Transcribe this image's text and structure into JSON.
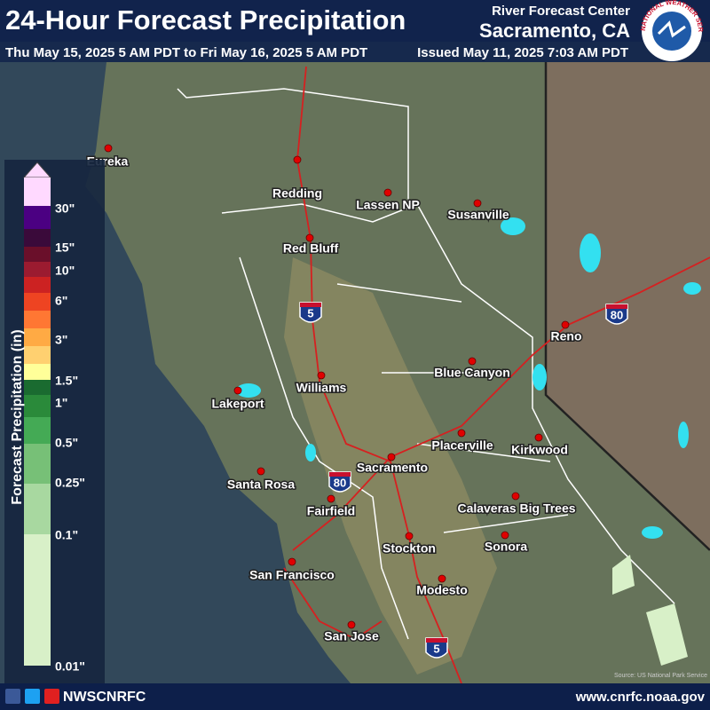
{
  "header": {
    "title": "24-Hour Forecast Precipitation",
    "valid_period": "Thu May 15, 2025 5 AM PDT to Fri May 16, 2025 5 AM PDT",
    "office_line1": "River Forecast Center",
    "office_line2": "Sacramento, CA",
    "issued": "Issued May 11, 2025 7:03 AM PDT"
  },
  "logo_text": "NATIONAL WEATHER SERVICE",
  "legend": {
    "title": "Forecast Precipitation (in)",
    "labels": [
      "30\"",
      "15\"",
      "10\"",
      "6\"",
      "3\"",
      "1.5\"",
      "1\"",
      "0.5\"",
      "0.25\"",
      "0.1\"",
      "0.01\""
    ],
    "colors": [
      "#ffd9ff",
      "#4b0082",
      "#3a0a3a",
      "#6a0f2a",
      "#9b1b30",
      "#cc2222",
      "#ee4422",
      "#ff7733",
      "#ffaa44",
      "#ffd070",
      "#ffff99",
      "#1a6b30",
      "#2a8a3a",
      "#44aa55",
      "#77c077",
      "#a8d8a0",
      "#d8f0c8"
    ]
  },
  "cities": [
    "Eureka",
    "Redding",
    "Lassen NP",
    "Susanville",
    "Red Bluff",
    "Reno",
    "Blue Canyon",
    "Williams",
    "Lakeport",
    "Placerville",
    "Kirkwood",
    "Sacramento",
    "Santa Rosa",
    "Fairfield",
    "Calaveras Big Trees",
    "Sonora",
    "Stockton",
    "San Francisco",
    "Modesto",
    "San Jose"
  ],
  "highway_shields": [
    "5",
    "80",
    "80",
    "5"
  ],
  "map_source": "Source: US National Park Service",
  "footer": {
    "social_handle": "NWSCNRFC",
    "url": "www.cnrfc.noaa.gov"
  }
}
